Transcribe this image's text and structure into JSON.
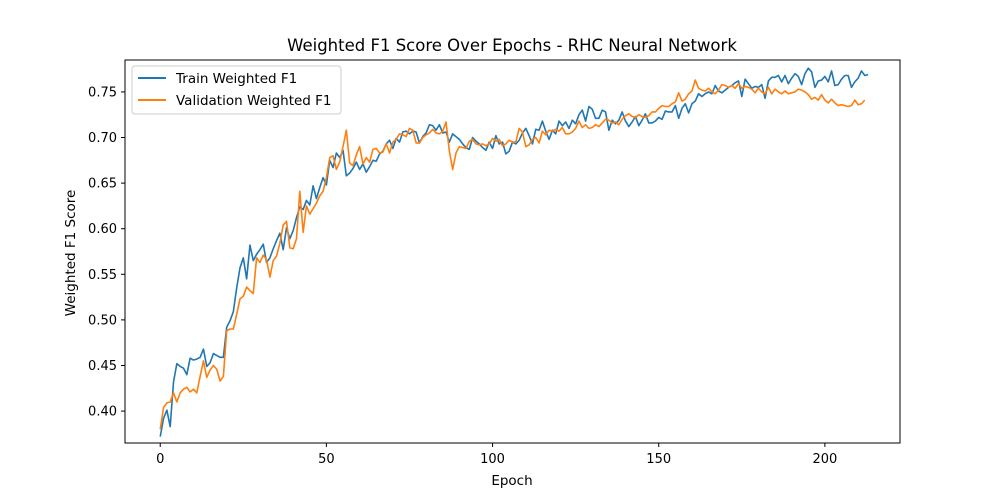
{
  "chart_data": {
    "type": "line",
    "title": "Weighted F1 Score Over Epochs - RHC Neural Network",
    "xlabel": "Epoch",
    "ylabel": "Weighted F1 Score",
    "xlim": [
      -10.6,
      222.6
    ],
    "ylim": [
      0.365,
      0.785
    ],
    "x_ticks": [
      0,
      50,
      100,
      150,
      200
    ],
    "y_ticks": [
      0.4,
      0.45,
      0.5,
      0.55,
      0.6,
      0.65,
      0.7,
      0.75
    ],
    "grid": false,
    "legend_position": "upper-left",
    "x_start": 0,
    "series": [
      {
        "name": "Train Weighted F1",
        "color": "#1f77b4",
        "values": [
          0.372,
          0.392,
          0.401,
          0.383,
          0.432,
          0.452,
          0.449,
          0.447,
          0.44,
          0.458,
          0.456,
          0.457,
          0.459,
          0.468,
          0.449,
          0.453,
          0.463,
          0.461,
          0.459,
          0.459,
          0.492,
          0.499,
          0.509,
          0.535,
          0.557,
          0.568,
          0.545,
          0.582,
          0.565,
          0.572,
          0.577,
          0.583,
          0.563,
          0.568,
          0.578,
          0.587,
          0.595,
          0.577,
          0.601,
          0.589,
          0.598,
          0.612,
          0.624,
          0.621,
          0.631,
          0.626,
          0.647,
          0.633,
          0.645,
          0.656,
          0.648,
          0.675,
          0.667,
          0.683,
          0.678,
          0.686,
          0.658,
          0.661,
          0.666,
          0.673,
          0.665,
          0.671,
          0.662,
          0.668,
          0.675,
          0.674,
          0.682,
          0.685,
          0.693,
          0.697,
          0.688,
          0.699,
          0.695,
          0.706,
          0.707,
          0.704,
          0.707,
          0.706,
          0.694,
          0.701,
          0.705,
          0.714,
          0.713,
          0.708,
          0.714,
          0.705,
          0.706,
          0.695,
          0.704,
          0.701,
          0.698,
          0.693,
          0.689,
          0.687,
          0.7,
          0.696,
          0.693,
          0.689,
          0.686,
          0.695,
          0.688,
          0.702,
          0.693,
          0.695,
          0.682,
          0.685,
          0.695,
          0.693,
          0.697,
          0.705,
          0.71,
          0.702,
          0.693,
          0.709,
          0.708,
          0.718,
          0.707,
          0.698,
          0.708,
          0.704,
          0.718,
          0.713,
          0.717,
          0.71,
          0.719,
          0.715,
          0.725,
          0.73,
          0.718,
          0.734,
          0.731,
          0.721,
          0.721,
          0.73,
          0.728,
          0.708,
          0.719,
          0.715,
          0.719,
          0.728,
          0.718,
          0.712,
          0.717,
          0.723,
          0.713,
          0.719,
          0.726,
          0.716,
          0.716,
          0.718,
          0.722,
          0.72,
          0.729,
          0.728,
          0.728,
          0.735,
          0.721,
          0.732,
          0.737,
          0.727,
          0.737,
          0.74,
          0.748,
          0.745,
          0.748,
          0.75,
          0.748,
          0.757,
          0.751,
          0.749,
          0.752,
          0.755,
          0.757,
          0.76,
          0.762,
          0.745,
          0.764,
          0.759,
          0.754,
          0.756,
          0.755,
          0.758,
          0.743,
          0.762,
          0.766,
          0.766,
          0.768,
          0.761,
          0.768,
          0.759,
          0.765,
          0.77,
          0.767,
          0.758,
          0.77,
          0.776,
          0.772,
          0.755,
          0.762,
          0.763,
          0.767,
          0.761,
          0.773,
          0.757,
          0.758,
          0.764,
          0.768,
          0.768,
          0.755,
          0.761,
          0.765,
          0.773,
          0.768,
          0.769
        ]
      },
      {
        "name": "Validation Weighted F1",
        "color": "#ff7f0e",
        "values": [
          0.38,
          0.404,
          0.409,
          0.41,
          0.42,
          0.41,
          0.42,
          0.424,
          0.426,
          0.421,
          0.424,
          0.42,
          0.438,
          0.455,
          0.437,
          0.445,
          0.45,
          0.446,
          0.433,
          0.438,
          0.488,
          0.49,
          0.49,
          0.506,
          0.523,
          0.526,
          0.536,
          0.532,
          0.529,
          0.568,
          0.563,
          0.571,
          0.566,
          0.547,
          0.565,
          0.57,
          0.584,
          0.604,
          0.608,
          0.579,
          0.578,
          0.589,
          0.641,
          0.596,
          0.625,
          0.616,
          0.622,
          0.628,
          0.636,
          0.641,
          0.656,
          0.678,
          0.68,
          0.665,
          0.673,
          0.69,
          0.708,
          0.672,
          0.669,
          0.681,
          0.69,
          0.671,
          0.678,
          0.673,
          0.687,
          0.688,
          0.683,
          0.684,
          0.693,
          0.683,
          0.695,
          0.698,
          0.704,
          0.703,
          0.701,
          0.71,
          0.708,
          0.694,
          0.694,
          0.7,
          0.703,
          0.705,
          0.709,
          0.705,
          0.704,
          0.707,
          0.717,
          0.685,
          0.665,
          0.683,
          0.69,
          0.689,
          0.688,
          0.696,
          0.698,
          0.693,
          0.692,
          0.693,
          0.691,
          0.693,
          0.699,
          0.696,
          0.698,
          0.691,
          0.693,
          0.697,
          0.695,
          0.695,
          0.71,
          0.706,
          0.69,
          0.692,
          0.698,
          0.7,
          0.694,
          0.707,
          0.703,
          0.708,
          0.707,
          0.709,
          0.707,
          0.711,
          0.704,
          0.704,
          0.706,
          0.71,
          0.718,
          0.711,
          0.714,
          0.71,
          0.711,
          0.714,
          0.712,
          0.716,
          0.72,
          0.719,
          0.716,
          0.717,
          0.714,
          0.72,
          0.724,
          0.726,
          0.723,
          0.722,
          0.725,
          0.723,
          0.722,
          0.724,
          0.728,
          0.728,
          0.732,
          0.735,
          0.734,
          0.734,
          0.737,
          0.739,
          0.749,
          0.74,
          0.742,
          0.748,
          0.751,
          0.763,
          0.754,
          0.752,
          0.751,
          0.754,
          0.75,
          0.748,
          0.752,
          0.758,
          0.757,
          0.755,
          0.757,
          0.754,
          0.759,
          0.754,
          0.756,
          0.755,
          0.753,
          0.749,
          0.754,
          0.75,
          0.748,
          0.755,
          0.748,
          0.753,
          0.75,
          0.748,
          0.751,
          0.748,
          0.749,
          0.75,
          0.753,
          0.752,
          0.75,
          0.747,
          0.742,
          0.744,
          0.741,
          0.747,
          0.741,
          0.738,
          0.742,
          0.738,
          0.735,
          0.736,
          0.735,
          0.734,
          0.735,
          0.741,
          0.736,
          0.737,
          0.741
        ]
      }
    ]
  }
}
